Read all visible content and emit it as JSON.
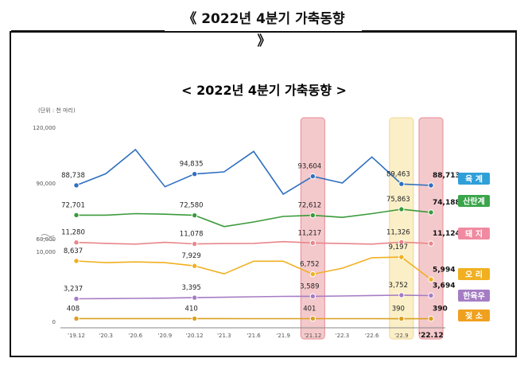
{
  "page_title": "《 2022년 4분기 가축동향",
  "page_title_cont": "》",
  "chart_data": {
    "type": "line",
    "title": "< 2022년 4분기 가축동향 >",
    "unit_label": "(단위 : 천 마리)",
    "x": [
      "'19.12",
      "'20.3",
      "'20.6",
      "'20.9",
      "'20.12",
      "'21.3",
      "'21.6",
      "'21.9",
      "'21.12",
      "'22.3",
      "'22.6",
      "'22.9",
      "'22.12"
    ],
    "y_ticks_upper": [
      "120,000",
      "90,000",
      "60,000"
    ],
    "y_ticks_lower": [
      "10,000",
      "0"
    ],
    "highlighted_periods": [
      "'21.12",
      "'22.9",
      "'22.12"
    ],
    "colors": {
      "육계": "#2f6fbf",
      "산란계": "#3a9a3a",
      "돼지": "#e8868a",
      "오리": "#f0b020",
      "한육우": "#a57cc4",
      "젖소": "#d9a020",
      "highlight_red": "#f4c9cc",
      "highlight_yellow": "#fbefc8"
    },
    "series": [
      {
        "name": "육계",
        "values": [
          88738,
          95000,
          108000,
          88000,
          94835,
          96000,
          107000,
          84000,
          93604,
          90000,
          104000,
          89463,
          88713
        ]
      },
      {
        "name": "산란계",
        "values": [
          72701,
          72701,
          73500,
          73200,
          72580,
          66500,
          69000,
          72000,
          72612,
          71500,
          73500,
          75863,
          74188
        ]
      },
      {
        "name": "돼지",
        "values": [
          11280,
          11150,
          11050,
          11300,
          11078,
          11130,
          11150,
          11400,
          11217,
          11130,
          11050,
          11326,
          11124
        ]
      },
      {
        "name": "오리",
        "values": [
          8637,
          8400,
          8500,
          8400,
          7929,
          6800,
          8600,
          8600,
          6752,
          7600,
          9100,
          9197,
          5994
        ]
      },
      {
        "name": "한육우",
        "values": [
          3237,
          3260,
          3300,
          3330,
          3395,
          3450,
          3520,
          3580,
          3589,
          3640,
          3700,
          3752,
          3694
        ]
      },
      {
        "name": "젖소",
        "values": [
          408,
          405,
          410,
          408,
          410,
          405,
          400,
          403,
          401,
          398,
          395,
          390,
          390
        ]
      }
    ],
    "data_labels": [
      {
        "series": "육계",
        "values": [
          "88,738",
          "94,835",
          "93,604",
          "89,463",
          "88,713"
        ]
      },
      {
        "series": "산란계",
        "values": [
          "72,701",
          "72,580",
          "72,612",
          "75,863",
          "74,188"
        ]
      },
      {
        "series": "돼지",
        "values": [
          "11,280",
          "11,078",
          "11,217",
          "11,326",
          "11,124"
        ]
      },
      {
        "series": "오리",
        "values": [
          "8,637",
          "7,929",
          "6,752",
          "9,197",
          "5,994"
        ]
      },
      {
        "series": "한육우",
        "values": [
          "3,237",
          "3,395",
          "3,589",
          "3,752",
          "3,694"
        ]
      },
      {
        "series": "젖소",
        "values": [
          "408",
          "410",
          "401",
          "390",
          "390"
        ]
      }
    ],
    "legend": [
      "육 계",
      "산란계",
      "돼 지",
      "오 리",
      "한육우",
      "젖 소"
    ],
    "legend_placement": "right"
  }
}
